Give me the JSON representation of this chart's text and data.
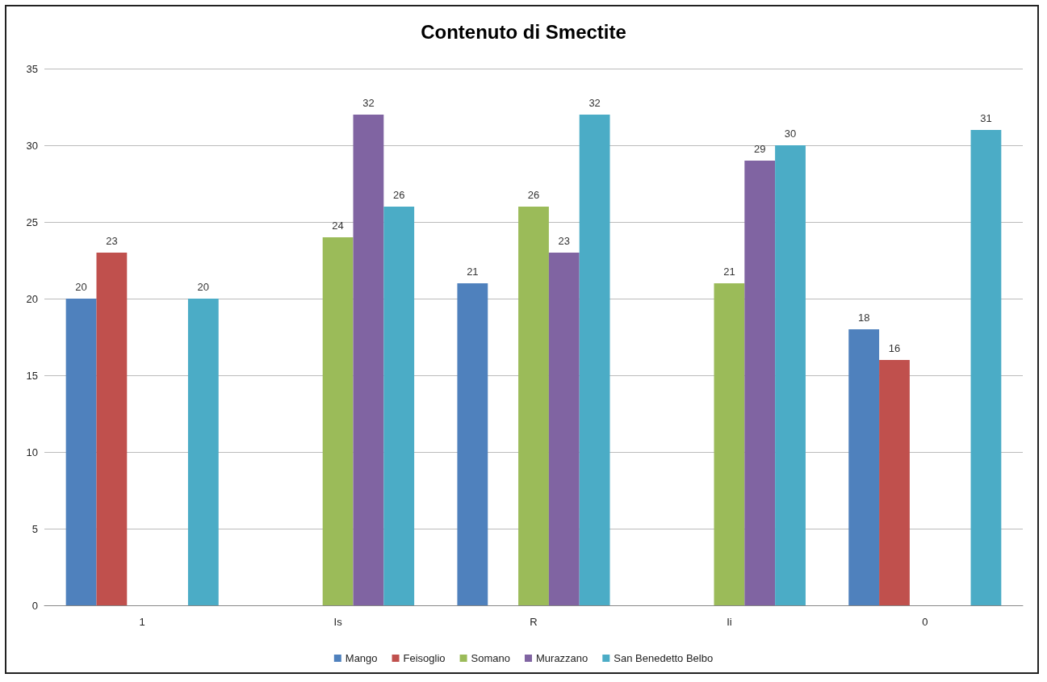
{
  "chart_data": {
    "type": "bar",
    "title": "Contenuto di Smectite",
    "categories": [
      "1",
      "Is",
      "R",
      "Ii",
      "0"
    ],
    "series": [
      {
        "name": "Mango",
        "color": "#4f81bd",
        "values": [
          20,
          null,
          21,
          null,
          18
        ]
      },
      {
        "name": "Feisoglio",
        "color": "#c0504d",
        "values": [
          23,
          null,
          null,
          null,
          16
        ]
      },
      {
        "name": "Somano",
        "color": "#9bbb59",
        "values": [
          null,
          24,
          26,
          21,
          null
        ]
      },
      {
        "name": "Murazzano",
        "color": "#8064a2",
        "values": [
          null,
          32,
          23,
          29,
          null
        ]
      },
      {
        "name": "San Benedetto Belbo",
        "color": "#4bacc6",
        "values": [
          20,
          26,
          32,
          30,
          31
        ]
      }
    ],
    "ylim": [
      0,
      35
    ],
    "yticks": [
      0,
      5,
      10,
      15,
      20,
      25,
      30,
      35
    ],
    "grid": "y",
    "legend": "bottom",
    "data_labels": true
  }
}
